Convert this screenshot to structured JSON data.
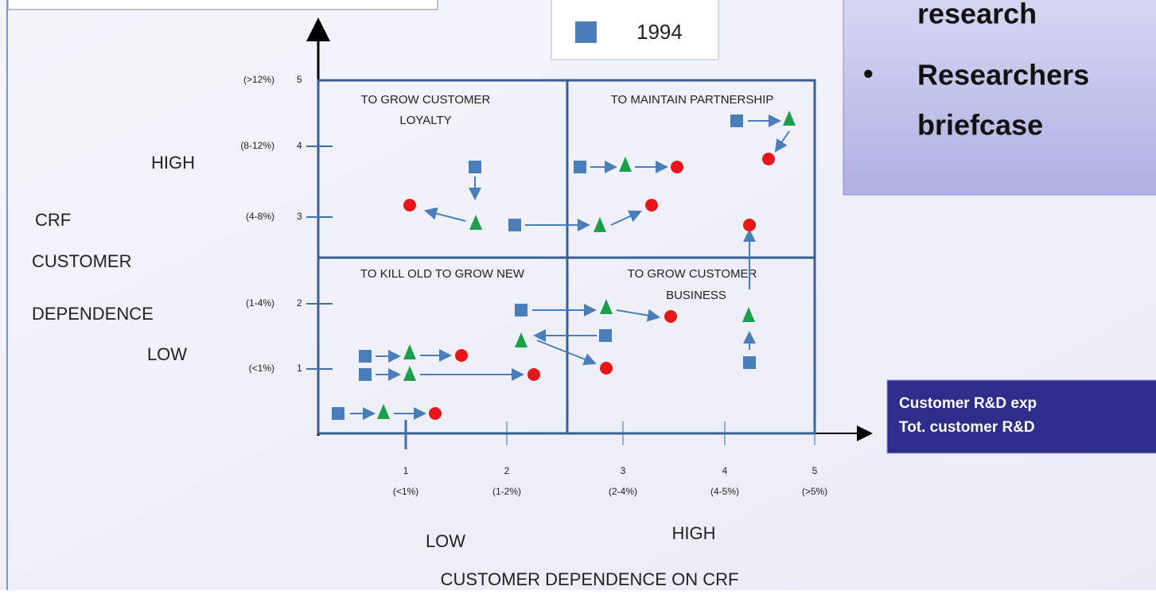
{
  "legend": {
    "label": "1994"
  },
  "panel": {
    "bullets": [
      "research",
      "Researchers",
      "briefcase"
    ]
  },
  "note": {
    "lines": [
      "Customer R&D exp",
      "Tot. customer R&D"
    ]
  },
  "y_axis": {
    "ticks": [
      "(>12%)",
      "5",
      "(8-12%)",
      "4",
      "(4-8%)",
      "3",
      "(1-4%)",
      "2",
      "(<1%)",
      "1"
    ],
    "labels": [
      "HIGH",
      "CRF",
      "CUSTOMER",
      "DEPENDENCE",
      "LOW"
    ]
  },
  "x_axis": {
    "ticks": [
      [
        "1",
        "(<1%)"
      ],
      [
        "2",
        "(1-2%)"
      ],
      [
        "3",
        "(2-4%)"
      ],
      [
        "4",
        "(4-5%)"
      ],
      [
        "5",
        "(>5%)"
      ]
    ],
    "labels": [
      "LOW",
      "HIGH"
    ],
    "title": "CUSTOMER DEPENDENCE ON CRF"
  },
  "quadrants": [
    [
      "TO GROW CUSTOMER",
      "LOYALTY"
    ],
    [
      "TO MAINTAIN PARTNERSHIP"
    ],
    [
      "TO KILL OLD TO GROW NEW"
    ],
    [
      "TO GROW CUSTOMER",
      "BUSINESS"
    ]
  ]
}
